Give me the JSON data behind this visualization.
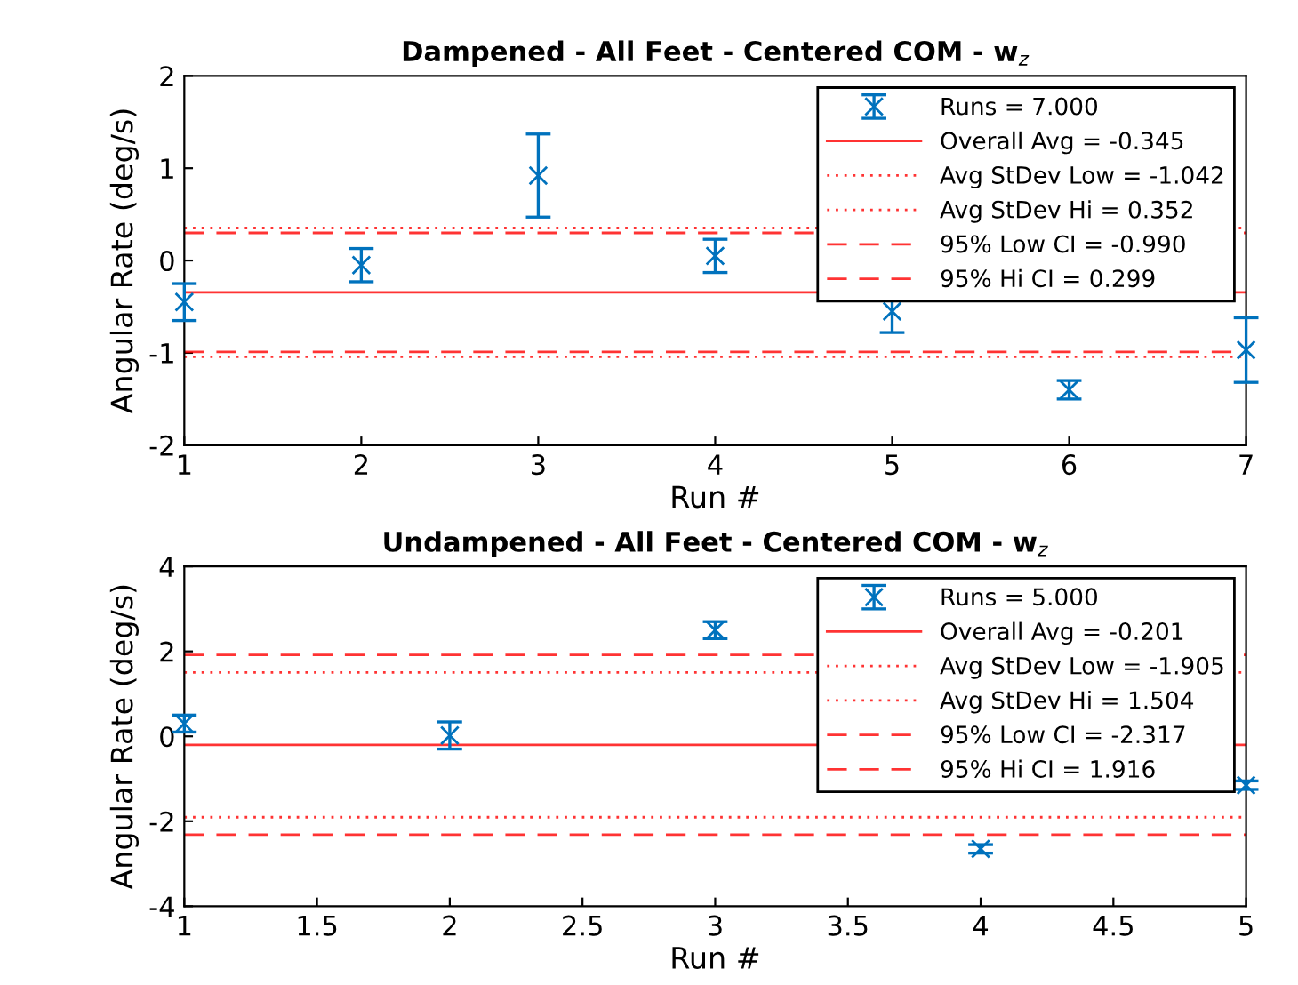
{
  "chart_data": [
    {
      "type": "scatter",
      "title": "Dampened - All Feet - Centered COM - w$_{z}$",
      "xlabel": "Run #",
      "ylabel": "Angular Rate (deg/s)",
      "x": [
        1,
        2,
        3,
        4,
        5,
        6,
        7
      ],
      "xlim": [
        1,
        7
      ],
      "xticks": [
        1,
        2,
        3,
        4,
        5,
        6,
        7
      ],
      "ylim": [
        -2,
        2
      ],
      "yticks": [
        -2,
        -1,
        0,
        1,
        2
      ],
      "marker": "cross",
      "legend": "top right",
      "grid": false,
      "series": [
        {
          "name": "Runs = 7.000",
          "color": "#0072bd",
          "values": [
            -0.45,
            -0.05,
            0.92,
            0.05,
            -0.55,
            -1.4,
            -0.97
          ],
          "errors": [
            0.2,
            0.18,
            0.45,
            0.18,
            0.23,
            0.1,
            0.35
          ]
        }
      ],
      "ref_lines": [
        {
          "axis": "y",
          "value": -0.345,
          "label": "Overall Avg = -0.345",
          "color": "#ff0000",
          "line_style": "solid"
        },
        {
          "axis": "y",
          "value": -1.042,
          "label": "Avg StDev Low = -1.042",
          "color": "#ff0000",
          "line_style": "dotted"
        },
        {
          "axis": "y",
          "value": 0.352,
          "label": "Avg StDev Hi = 0.352",
          "color": "#ff0000",
          "line_style": "dotted"
        },
        {
          "axis": "y",
          "value": -0.99,
          "label": "95% Low CI = -0.990",
          "color": "#ff0000",
          "line_style": "dashed"
        },
        {
          "axis": "y",
          "value": 0.299,
          "label": "95% Hi CI = 0.299",
          "color": "#ff0000",
          "line_style": "dashed"
        }
      ]
    },
    {
      "type": "scatter",
      "title": "Undampened - All Feet - Centered COM - w$_{z}$",
      "xlabel": "Run #",
      "ylabel": "Angular Rate (deg/s)",
      "x": [
        1,
        2,
        3,
        4,
        5
      ],
      "xlim": [
        1,
        5
      ],
      "xticks": [
        1,
        1.5,
        2,
        2.5,
        3,
        3.5,
        4,
        4.5,
        5
      ],
      "ylim": [
        -4,
        4
      ],
      "yticks": [
        -4,
        -2,
        0,
        2,
        4
      ],
      "marker": "cross",
      "legend": "top right",
      "grid": false,
      "series": [
        {
          "name": "Runs = 5.000",
          "color": "#0072bd",
          "values": [
            0.3,
            0.02,
            2.5,
            -2.65,
            -1.15
          ],
          "errors": [
            0.2,
            0.32,
            0.2,
            0.1,
            0.1
          ]
        }
      ],
      "ref_lines": [
        {
          "axis": "y",
          "value": -0.201,
          "label": "Overall Avg = -0.201",
          "color": "#ff0000",
          "line_style": "solid"
        },
        {
          "axis": "y",
          "value": -1.905,
          "label": "Avg StDev Low = -1.905",
          "color": "#ff0000",
          "line_style": "dotted"
        },
        {
          "axis": "y",
          "value": 1.504,
          "label": "Avg StDev Hi = 1.504",
          "color": "#ff0000",
          "line_style": "dotted"
        },
        {
          "axis": "y",
          "value": -2.317,
          "label": "95% Low CI = -2.317",
          "color": "#ff0000",
          "line_style": "dashed"
        },
        {
          "axis": "y",
          "value": 1.916,
          "label": "95% Hi CI = 1.916",
          "color": "#ff0000",
          "line_style": "dashed"
        }
      ]
    }
  ]
}
